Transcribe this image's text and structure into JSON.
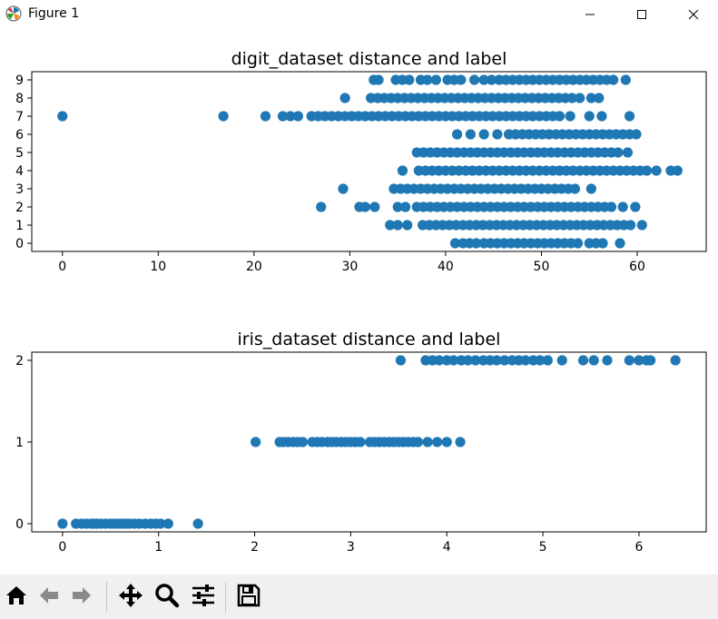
{
  "window": {
    "title": "Figure 1",
    "icon": "matplotlib-logo-icon",
    "controls": [
      "minimize-icon",
      "maximize-icon",
      "close-icon"
    ]
  },
  "colors": {
    "marker": "#1f77b4",
    "axes": "#000000",
    "toolbar_bg": "#f0f0f0"
  },
  "toolbar": {
    "buttons": [
      "home-icon",
      "back-arrow-icon",
      "forward-arrow-icon",
      "pan-icon",
      "zoom-icon",
      "configure-subplots-icon",
      "save-icon"
    ]
  },
  "chart_data": [
    {
      "type": "scatter",
      "title": "digit_dataset distance and label",
      "xlabel": "",
      "ylabel": "",
      "xlim": [
        -3.2,
        67.2
      ],
      "ylim": [
        -0.45,
        9.45
      ],
      "xticks": [
        "0",
        "10",
        "20",
        "30",
        "40",
        "50",
        "60"
      ],
      "yticks": [
        "0",
        "1",
        "2",
        "3",
        "4",
        "5",
        "6",
        "7",
        "8",
        "9"
      ],
      "grid": false,
      "legend": "none",
      "series": [
        {
          "y": 0,
          "x": [
            41.0,
            41.8,
            42.5,
            43.2,
            44.0,
            44.7,
            45.4,
            46.1,
            46.8,
            47.5,
            48.2,
            48.9,
            49.6,
            50.3,
            51.0,
            51.7,
            52.4,
            53.1,
            53.8,
            55.0,
            55.7,
            56.4,
            58.2
          ]
        },
        {
          "y": 1,
          "x": [
            34.2,
            35.0,
            36.0,
            37.6,
            38.3,
            39.0,
            39.7,
            40.4,
            41.1,
            41.8,
            42.5,
            43.2,
            43.9,
            44.6,
            45.3,
            46.0,
            46.7,
            47.4,
            48.1,
            48.8,
            49.5,
            50.2,
            50.9,
            51.6,
            52.3,
            53.0,
            53.7,
            54.4,
            55.1,
            55.8,
            56.5,
            57.2,
            57.9,
            58.6,
            59.3,
            60.5
          ]
        },
        {
          "y": 2,
          "x": [
            27.0,
            31.0,
            31.6,
            32.6,
            35.0,
            35.8,
            37.0,
            37.7,
            38.4,
            39.1,
            39.8,
            40.5,
            41.2,
            41.9,
            42.6,
            43.3,
            44.0,
            44.7,
            45.4,
            46.1,
            46.8,
            47.5,
            48.2,
            48.9,
            49.6,
            50.3,
            51.0,
            51.7,
            52.4,
            53.1,
            53.8,
            54.5,
            55.2,
            55.9,
            56.6,
            57.3,
            58.5,
            59.8
          ]
        },
        {
          "y": 3,
          "x": [
            29.3,
            34.6,
            35.3,
            36.0,
            36.7,
            37.4,
            38.1,
            38.8,
            39.5,
            40.2,
            40.9,
            41.6,
            42.3,
            43.0,
            43.7,
            44.4,
            45.1,
            45.8,
            46.5,
            47.2,
            47.9,
            48.6,
            49.3,
            50.0,
            50.7,
            51.4,
            52.1,
            52.8,
            53.5,
            55.2
          ]
        },
        {
          "y": 4,
          "x": [
            35.5,
            37.2,
            37.9,
            38.6,
            39.3,
            40.0,
            40.7,
            41.4,
            42.1,
            42.8,
            43.5,
            44.2,
            44.9,
            45.6,
            46.3,
            47.0,
            47.7,
            48.4,
            49.1,
            49.8,
            50.5,
            51.2,
            51.9,
            52.6,
            53.3,
            54.0,
            54.7,
            55.4,
            56.1,
            56.8,
            57.5,
            58.2,
            58.9,
            59.6,
            60.3,
            61.0,
            62.0,
            63.5,
            64.2
          ]
        },
        {
          "y": 5,
          "x": [
            37.0,
            37.7,
            38.4,
            39.1,
            39.8,
            40.5,
            41.2,
            41.9,
            42.6,
            43.3,
            44.0,
            44.7,
            45.4,
            46.1,
            46.8,
            47.5,
            48.2,
            48.9,
            49.6,
            50.3,
            51.0,
            51.7,
            52.4,
            53.1,
            53.8,
            54.5,
            55.2,
            55.9,
            56.6,
            57.3,
            58.0,
            59.0
          ]
        },
        {
          "y": 6,
          "x": [
            41.2,
            42.6,
            44.0,
            45.4,
            46.6,
            47.3,
            48.0,
            48.7,
            49.4,
            50.1,
            50.8,
            51.5,
            52.2,
            52.9,
            53.6,
            54.3,
            55.0,
            55.7,
            56.4,
            57.1,
            57.8,
            58.5,
            59.2,
            59.9
          ]
        },
        {
          "y": 7,
          "x": [
            0.0,
            16.8,
            21.2,
            23.0,
            23.8,
            24.6,
            26.0,
            26.7,
            27.4,
            28.1,
            28.8,
            29.5,
            30.2,
            30.9,
            31.6,
            32.3,
            33.0,
            33.7,
            34.4,
            35.1,
            35.8,
            36.5,
            37.2,
            37.9,
            38.6,
            39.3,
            40.0,
            40.7,
            41.4,
            42.1,
            42.8,
            43.5,
            44.2,
            44.9,
            45.6,
            46.3,
            47.0,
            47.7,
            48.4,
            49.1,
            49.8,
            50.5,
            51.2,
            51.9,
            53.0,
            55.0,
            56.3,
            59.2
          ]
        },
        {
          "y": 8,
          "x": [
            29.5,
            32.2,
            32.9,
            33.6,
            34.3,
            35.0,
            35.7,
            36.4,
            37.1,
            37.8,
            38.5,
            39.2,
            39.9,
            40.6,
            41.3,
            42.0,
            42.7,
            43.4,
            44.1,
            44.8,
            45.5,
            46.2,
            46.9,
            47.6,
            48.3,
            49.0,
            49.7,
            50.4,
            51.1,
            51.8,
            52.5,
            53.2,
            54.0,
            55.2,
            56.0
          ]
        },
        {
          "y": 9,
          "x": [
            32.5,
            33.0,
            34.8,
            35.5,
            36.2,
            37.4,
            38.1,
            39.0,
            40.2,
            40.9,
            41.6,
            43.0,
            44.0,
            44.8,
            45.6,
            46.3,
            47.0,
            47.7,
            48.4,
            49.1,
            49.8,
            50.5,
            51.2,
            51.9,
            52.6,
            53.3,
            54.0,
            54.7,
            55.4,
            56.1,
            56.8,
            57.5,
            58.8
          ]
        }
      ]
    },
    {
      "type": "scatter",
      "title": "iris_dataset distance and label",
      "xlabel": "",
      "ylabel": "",
      "xlim": [
        -0.32,
        6.7
      ],
      "ylim": [
        -0.1,
        2.1
      ],
      "xticks": [
        "0",
        "1",
        "2",
        "3",
        "4",
        "5",
        "6"
      ],
      "yticks": [
        "0",
        "1",
        "2"
      ],
      "grid": false,
      "legend": "none",
      "series": [
        {
          "y": 0,
          "x": [
            0.0,
            0.14,
            0.2,
            0.25,
            0.3,
            0.33,
            0.36,
            0.4,
            0.45,
            0.5,
            0.54,
            0.58,
            0.62,
            0.66,
            0.7,
            0.75,
            0.8,
            0.86,
            0.92,
            0.97,
            1.02,
            1.1,
            1.41
          ]
        },
        {
          "y": 1,
          "x": [
            2.01,
            2.26,
            2.3,
            2.35,
            2.4,
            2.45,
            2.5,
            2.6,
            2.65,
            2.7,
            2.76,
            2.8,
            2.85,
            2.9,
            2.95,
            3.0,
            3.05,
            3.1,
            3.2,
            3.25,
            3.3,
            3.35,
            3.4,
            3.45,
            3.5,
            3.55,
            3.6,
            3.65,
            3.7,
            3.8,
            3.9,
            4.0,
            4.14
          ]
        },
        {
          "y": 2,
          "x": [
            3.52,
            3.78,
            3.85,
            3.92,
            4.0,
            4.07,
            4.15,
            4.22,
            4.3,
            4.38,
            4.45,
            4.52,
            4.6,
            4.68,
            4.75,
            4.82,
            4.9,
            4.97,
            5.05,
            5.2,
            5.42,
            5.53,
            5.67,
            5.9,
            6.0,
            6.08,
            6.12,
            6.38
          ]
        }
      ]
    }
  ]
}
